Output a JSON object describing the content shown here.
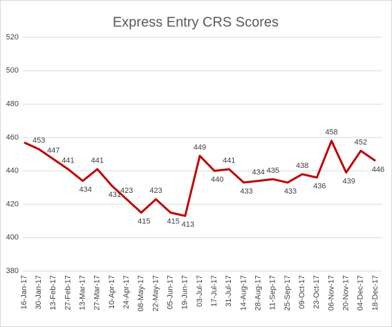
{
  "chart_data": {
    "type": "line",
    "title": "Express Entry CRS Scores",
    "categories": [
      "16-Jan-17",
      "30-Jan-17",
      "13-Feb-17",
      "27-Feb-17",
      "13-Mar-17",
      "27-Mar-17",
      "10-Apr-17",
      "24-Apr-17",
      "08-May-17",
      "22-May-17",
      "05-Jun-17",
      "19-Jun-17",
      "03-Jul-17",
      "17-Jul-17",
      "31-Jul-17",
      "14-Aug-17",
      "28-Aug-17",
      "11-Sep-17",
      "25-Sep-17",
      "09-Oct-17",
      "23-Oct-17",
      "06-Nov-17",
      "20-Nov-17",
      "04-Dec-17",
      "18-Dec-17"
    ],
    "values": [
      457,
      453,
      447,
      441,
      434,
      441,
      431,
      423,
      415,
      423,
      415,
      413,
      449,
      440,
      441,
      433,
      434,
      435,
      433,
      438,
      436,
      458,
      439,
      452,
      446
    ],
    "value_labels": [
      null,
      "453",
      "447",
      "441",
      "434",
      "441",
      "431",
      "423",
      "415",
      "423",
      "415",
      "413",
      "449",
      "440",
      "441",
      "433",
      "434",
      "435",
      "433",
      "438",
      "436",
      "458",
      "439",
      "452",
      "446"
    ],
    "color": "#c00000",
    "ylim": [
      380,
      520
    ],
    "yticks": [
      380,
      400,
      420,
      440,
      460,
      480,
      500,
      520
    ],
    "grid": true
  }
}
